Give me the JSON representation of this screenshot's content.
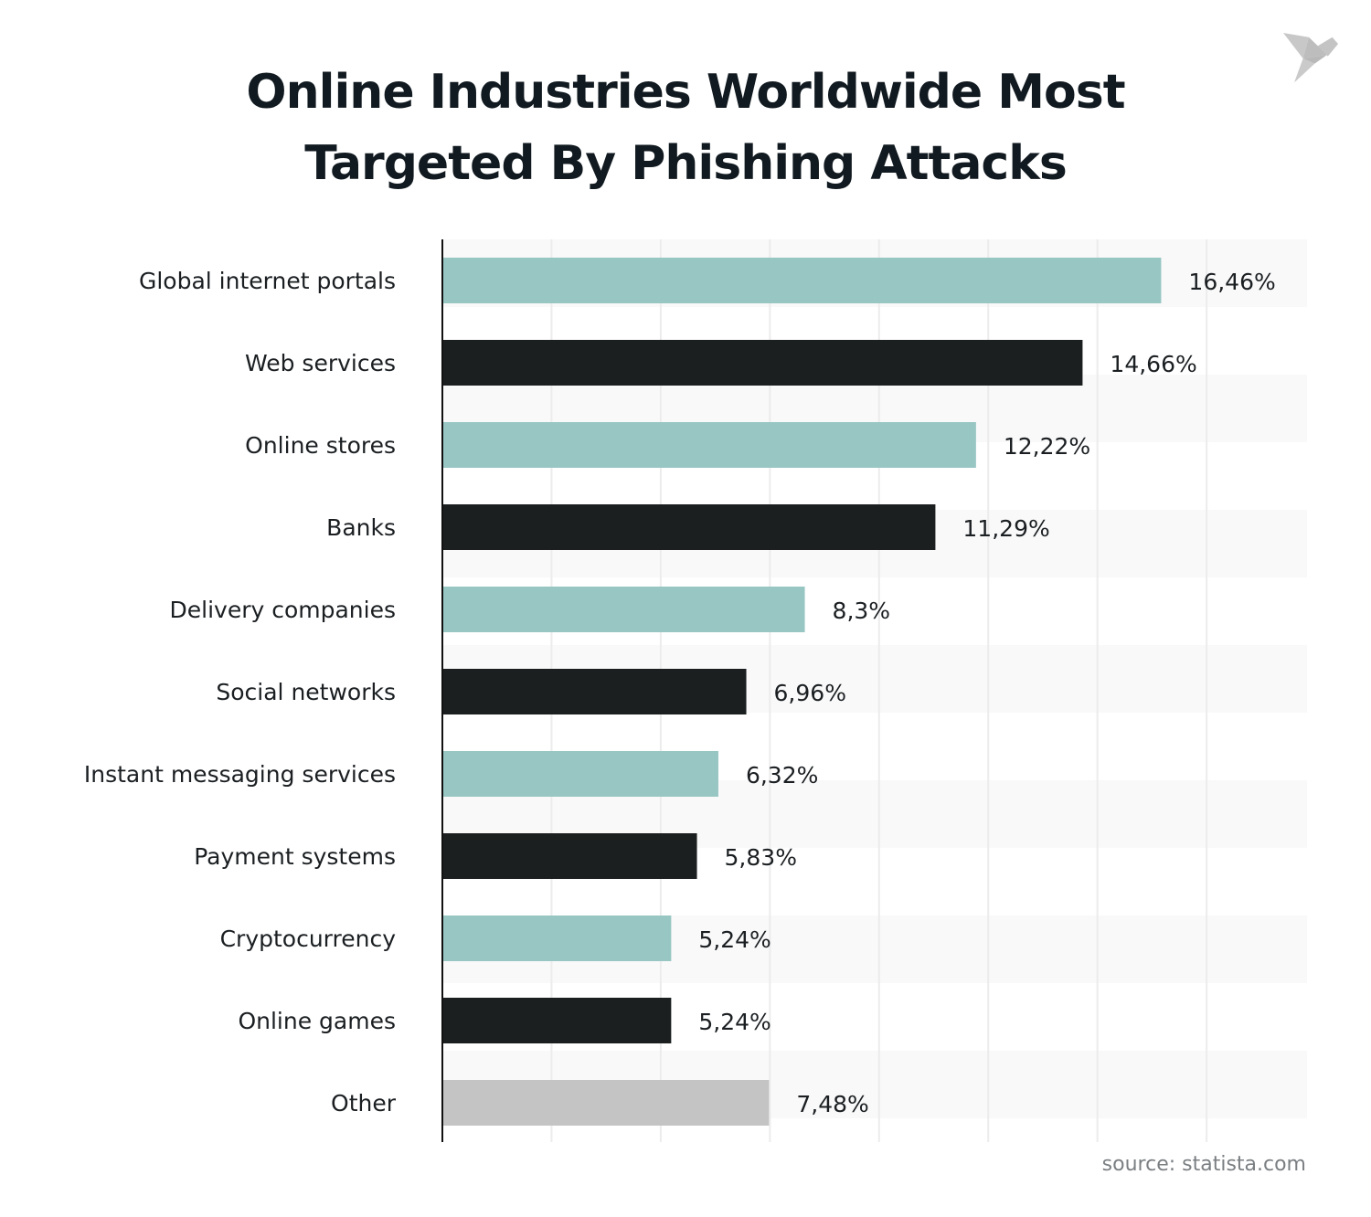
{
  "title_lines": [
    "Online Industries Worldwide Most",
    "Targeted By Phishing Attacks"
  ],
  "source": "source: statista.com",
  "logo": "statista-bird-logo",
  "chart_data": {
    "type": "bar",
    "orientation": "horizontal",
    "title": "Online Industries Worldwide Most Targeted By Phishing Attacks",
    "categories": [
      "Global internet portals",
      "Web services",
      "Online stores",
      "Banks",
      "Delivery companies",
      "Social networks",
      "Instant messaging services",
      "Payment systems",
      "Cryptocurrency",
      "Online games",
      "Other"
    ],
    "values": [
      16.46,
      14.66,
      12.22,
      11.29,
      8.3,
      6.96,
      6.32,
      5.83,
      5.24,
      5.24,
      7.48
    ],
    "data_labels": [
      "16,46%",
      "14,66%",
      "12,22%",
      "11,29%",
      "8,3%",
      "6,96%",
      "6,32%",
      "5,83%",
      "5,24%",
      "5,24%",
      "7,48%"
    ],
    "colors": [
      "#97c6c3",
      "#1c1f20",
      "#97c6c3",
      "#1c1f20",
      "#97c6c3",
      "#1c1f20",
      "#97c6c3",
      "#1c1f20",
      "#97c6c3",
      "#1c1f20",
      "#c4c4c4"
    ],
    "xlim": [
      0,
      19.8
    ],
    "grid_step": 2.5,
    "grid": true,
    "xlabel": "",
    "ylabel": ""
  }
}
